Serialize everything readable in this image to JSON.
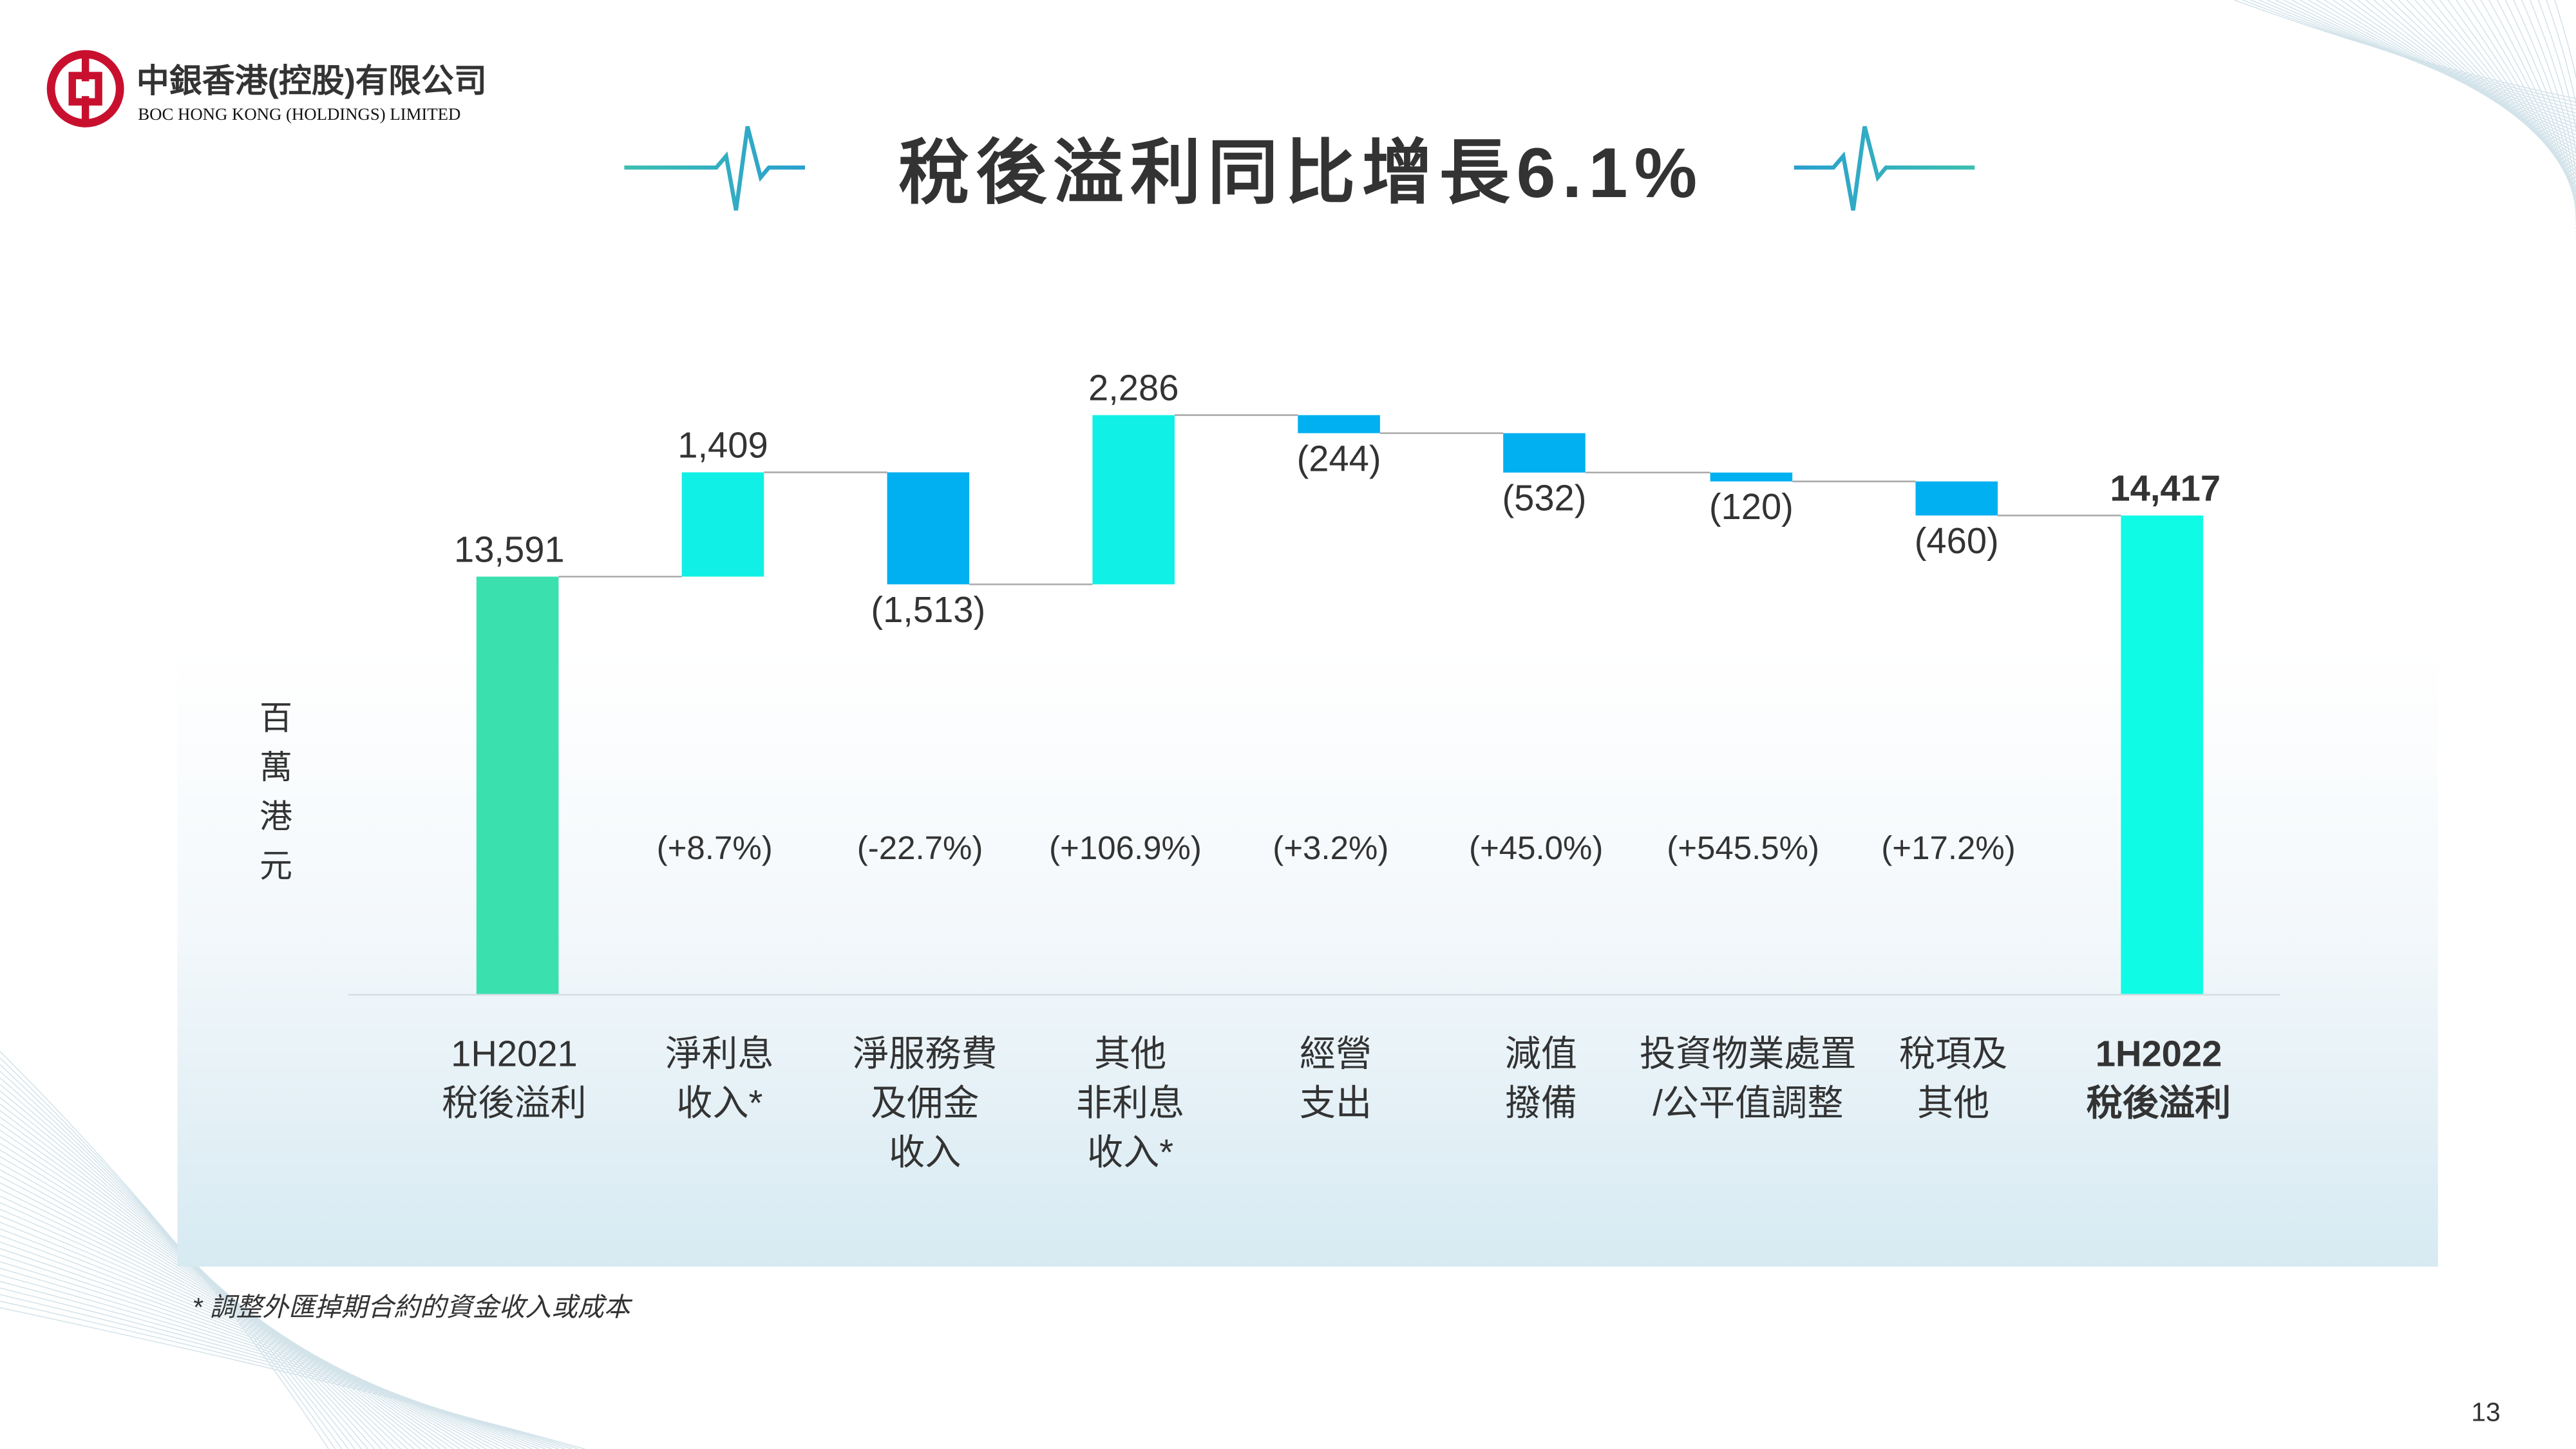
{
  "logo": {
    "name_zh": "中銀香港(控股)有限公司",
    "name_en": "BOC HONG KONG (HOLDINGS) LIMITED"
  },
  "title": "稅後溢利同比增長6.1%",
  "unit_label": [
    "百",
    "萬",
    "港",
    "元"
  ],
  "footnote": "* 調整外匯掉期合約的資金收入或成本",
  "page_number": "13",
  "colors": {
    "start": "#3ae0ad",
    "increase": "#10f0e6",
    "decrease": "#00b0f0",
    "end": "#10fbe6",
    "accent": "#2bb7c4"
  },
  "chart_data": {
    "type": "waterfall",
    "title": "稅後溢利同比增長6.1%",
    "ylabel": "百萬港元",
    "ylim": [
      7954,
      16000
    ],
    "categories": [
      {
        "lines": [
          "1H2021",
          "稅後溢利"
        ],
        "bold": false
      },
      {
        "lines": [
          "淨利息",
          "收入*"
        ]
      },
      {
        "lines": [
          "淨服務費",
          "及佣金",
          "收入"
        ]
      },
      {
        "lines": [
          "其他",
          "非利息",
          "收入*"
        ]
      },
      {
        "lines": [
          "經營",
          "支出"
        ]
      },
      {
        "lines": [
          "減值",
          "撥備"
        ]
      },
      {
        "lines": [
          "投資物業處置",
          "/公平值調整"
        ]
      },
      {
        "lines": [
          "稅項及",
          "其他"
        ]
      },
      {
        "lines": [
          "1H2022",
          "稅後溢利"
        ],
        "bold": true
      }
    ],
    "values": [
      13591,
      1409,
      -1513,
      2286,
      -244,
      -532,
      -120,
      -460,
      14417
    ],
    "kinds": [
      "total",
      "delta",
      "delta",
      "delta",
      "delta",
      "delta",
      "delta",
      "delta",
      "total"
    ],
    "value_labels": [
      "13,591",
      "1,409",
      "(1,513)",
      "2,286",
      "(244)",
      "(532)",
      "(120)",
      "(460)",
      "14,417"
    ],
    "pct_labels": [
      "",
      "(+8.7%)",
      "(-22.7%)",
      "(+106.9%)",
      "(+3.2%)",
      "(+45.0%)",
      "(+545.5%)",
      "(+17.2%)",
      ""
    ]
  }
}
